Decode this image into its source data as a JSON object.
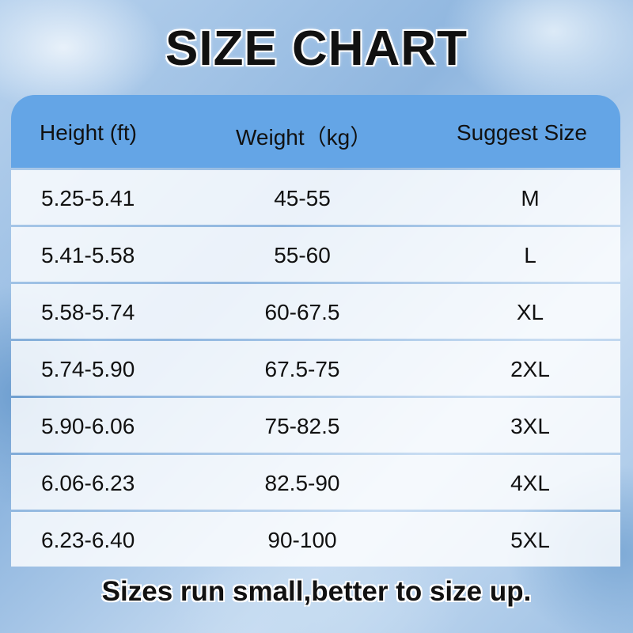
{
  "title": "SIZE CHART",
  "colors": {
    "header_bg": "#64a5e6",
    "row_bg": "#ffffff",
    "text": "#111111"
  },
  "table": {
    "headers": [
      "Height (ft)",
      "Weight（kg）",
      "Suggest Size"
    ],
    "rows": [
      [
        "5.25-5.41",
        "45-55",
        "M"
      ],
      [
        "5.41-5.58",
        "55-60",
        "L"
      ],
      [
        "5.58-5.74",
        "60-67.5",
        "XL"
      ],
      [
        "5.74-5.90",
        "67.5-75",
        "2XL"
      ],
      [
        "5.90-6.06",
        "75-82.5",
        "3XL"
      ],
      [
        "6.06-6.23",
        "82.5-90",
        "4XL"
      ],
      [
        "6.23-6.40",
        "90-100",
        "5XL"
      ]
    ]
  },
  "footer": "Sizes run small,better to size up."
}
